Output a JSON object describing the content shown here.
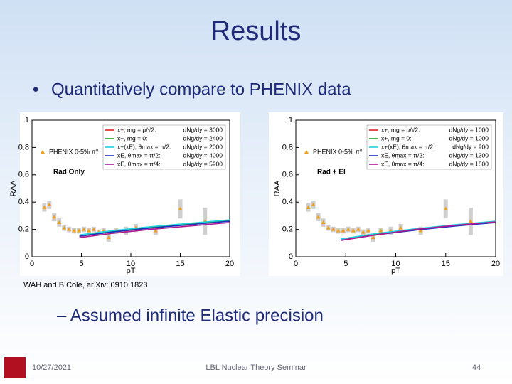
{
  "slide": {
    "title": "Results",
    "bullet": "Quantitatively compare to PHENIX data",
    "citation": "WAH and B Cole, ar.Xiv: 0910.1823",
    "sub_bullet": "– Assumed infinite Elastic precision",
    "footer": {
      "date": "10/27/2021",
      "center": "LBL Nuclear Theory Seminar",
      "page": "44"
    }
  },
  "chart_data": [
    {
      "type": "line",
      "annotation": "Rad Only",
      "x_label": "pT",
      "y_label": "RAA",
      "xlim": [
        0,
        20
      ],
      "xticks": [
        0,
        5,
        10,
        15,
        20
      ],
      "ylim": [
        0,
        1
      ],
      "yticks": [
        0,
        0.2,
        0.4,
        0.6,
        0.8,
        1
      ],
      "series": [
        {
          "name": "PHENIX 0-5% π⁰",
          "color": "#f0a020",
          "marker": "triangle",
          "x": [
            1.25,
            1.75,
            2.25,
            2.75,
            3.25,
            3.75,
            4.25,
            4.75,
            5.25,
            5.75,
            6.25,
            6.75,
            7.25,
            7.75,
            8.5,
            9.5,
            10.5,
            12.5,
            15,
            17.5
          ],
          "values": [
            0.36,
            0.38,
            0.29,
            0.25,
            0.21,
            0.2,
            0.19,
            0.19,
            0.2,
            0.19,
            0.2,
            0.18,
            0.19,
            0.14,
            0.19,
            0.19,
            0.21,
            0.19,
            0.35,
            0.26
          ],
          "errors": [
            0.03,
            0.03,
            0.03,
            0.03,
            0.02,
            0.02,
            0.02,
            0.02,
            0.02,
            0.02,
            0.02,
            0.02,
            0.02,
            0.03,
            0.02,
            0.03,
            0.03,
            0.03,
            0.07,
            0.1
          ]
        },
        {
          "name": "x+, mg = μ/√2:",
          "dndy": "dNg/dy = 3000",
          "color": "#e02020",
          "x": [
            4.8,
            8,
            12,
            16,
            20
          ],
          "values": [
            0.15,
            0.18,
            0.21,
            0.24,
            0.265
          ]
        },
        {
          "name": "x+, mg = 0:",
          "dndy": "dNg/dy = 2400",
          "color": "#20a020",
          "x": [
            4.8,
            8,
            12,
            16,
            20
          ],
          "values": [
            0.15,
            0.185,
            0.215,
            0.24,
            0.265
          ]
        },
        {
          "name": "x+(xE), θmax = π/2:",
          "dndy": "dNg/dy = 2000",
          "color": "#20d0e0",
          "x": [
            4.8,
            8,
            12,
            16,
            20
          ],
          "values": [
            0.16,
            0.19,
            0.22,
            0.245,
            0.27
          ]
        },
        {
          "name": "xE, θmax = π/2:",
          "dndy": "dNg/dy = 4000",
          "color": "#2030c0",
          "x": [
            4.8,
            8,
            12,
            16,
            20
          ],
          "values": [
            0.15,
            0.18,
            0.21,
            0.235,
            0.26
          ]
        },
        {
          "name": "xE, θmax = π/4:",
          "dndy": "dNg/dy = 5900",
          "color": "#b01890",
          "x": [
            4.8,
            8,
            12,
            16,
            20
          ],
          "values": [
            0.14,
            0.17,
            0.2,
            0.225,
            0.25
          ]
        }
      ]
    },
    {
      "type": "line",
      "annotation": "Rad + El",
      "x_label": "pT",
      "y_label": "RAA",
      "xlim": [
        0,
        20
      ],
      "xticks": [
        0,
        5,
        10,
        15,
        20
      ],
      "ylim": [
        0,
        1
      ],
      "yticks": [
        0,
        0.2,
        0.4,
        0.6,
        0.8,
        1
      ],
      "series": [
        {
          "name": "PHENIX 0-5% π⁰",
          "color": "#f0a020",
          "marker": "triangle",
          "x": [
            1.25,
            1.75,
            2.25,
            2.75,
            3.25,
            3.75,
            4.25,
            4.75,
            5.25,
            5.75,
            6.25,
            6.75,
            7.25,
            7.75,
            8.5,
            9.5,
            10.5,
            12.5,
            15,
            17.5
          ],
          "values": [
            0.36,
            0.38,
            0.29,
            0.25,
            0.21,
            0.2,
            0.19,
            0.19,
            0.2,
            0.19,
            0.2,
            0.18,
            0.19,
            0.14,
            0.19,
            0.19,
            0.21,
            0.19,
            0.35,
            0.26
          ],
          "errors": [
            0.03,
            0.03,
            0.03,
            0.03,
            0.02,
            0.02,
            0.02,
            0.02,
            0.02,
            0.02,
            0.02,
            0.02,
            0.02,
            0.03,
            0.02,
            0.03,
            0.03,
            0.03,
            0.07,
            0.1
          ]
        },
        {
          "name": "x+, mg = μ/√2:",
          "dndy": "dNg/dy = 1000",
          "color": "#e02020",
          "x": [
            4.5,
            8,
            12,
            16,
            20
          ],
          "values": [
            0.12,
            0.16,
            0.2,
            0.23,
            0.25
          ]
        },
        {
          "name": "x+, mg = 0:",
          "dndy": "dNg/dy = 1000",
          "color": "#20a020",
          "x": [
            4.5,
            8,
            12,
            16,
            20
          ],
          "values": [
            0.12,
            0.165,
            0.2,
            0.23,
            0.255
          ]
        },
        {
          "name": "x+(xE), θmax = π/2:",
          "dndy": "dNg/dy = 900",
          "color": "#20d0e0",
          "x": [
            4.5,
            8,
            12,
            16,
            20
          ],
          "values": [
            0.13,
            0.17,
            0.205,
            0.235,
            0.26
          ]
        },
        {
          "name": "xE, θmax = π/2:",
          "dndy": "dNg/dy = 1300",
          "color": "#2030c0",
          "x": [
            4.5,
            8,
            12,
            16,
            20
          ],
          "values": [
            0.12,
            0.16,
            0.195,
            0.225,
            0.25
          ]
        },
        {
          "name": "xE, θmax = π/4:",
          "dndy": "dNg/dy = 1500",
          "color": "#b01890",
          "x": [
            4.5,
            8,
            12,
            16,
            20
          ],
          "values": [
            0.12,
            0.16,
            0.2,
            0.23,
            0.255
          ]
        }
      ]
    }
  ]
}
